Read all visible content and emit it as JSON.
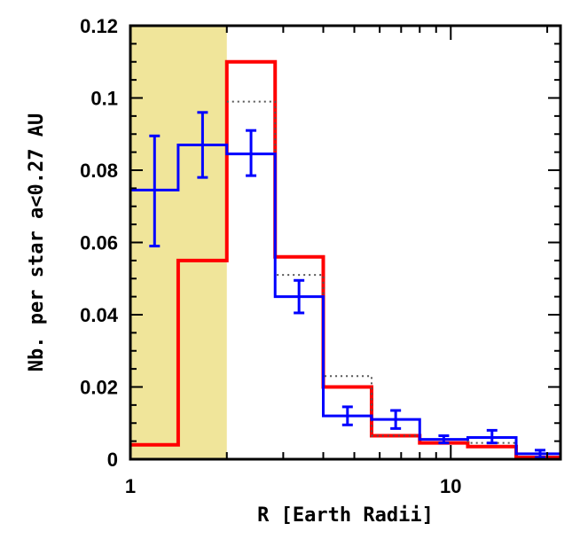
{
  "chart_data": {
    "type": "histogram",
    "xlabel": "R [Earth Radii]",
    "ylabel": "Nb. per star a<0.27 AU",
    "x_scale": "log",
    "xlim": [
      1,
      22
    ],
    "ylim": [
      0,
      0.12
    ],
    "x_ticks": [
      {
        "value": 1,
        "label": "1"
      },
      {
        "value": 10,
        "label": "10"
      }
    ],
    "y_ticks": [
      {
        "value": 0,
        "label": "0"
      },
      {
        "value": 0.02,
        "label": "0.02"
      },
      {
        "value": 0.04,
        "label": "0.04"
      },
      {
        "value": 0.06,
        "label": "0.06"
      },
      {
        "value": 0.08,
        "label": "0.08"
      },
      {
        "value": 0.1,
        "label": "0.1"
      },
      {
        "value": 0.12,
        "label": "0.12"
      }
    ],
    "shaded_region": {
      "x": [
        1,
        2.0
      ],
      "color": "#f0e59a"
    },
    "series": [
      {
        "style": "solid",
        "color": "#ff0000",
        "bin_edges": [
          1,
          1.41,
          2.0,
          2.83,
          4.0,
          5.66,
          8.0,
          11.3,
          16.0,
          22.0
        ],
        "values": [
          0.004,
          0.055,
          0.11,
          0.056,
          0.02,
          0.0065,
          0.0045,
          0.0035,
          0.0005
        ]
      },
      {
        "style": "dotted",
        "color": "#555555",
        "bin_edges": [
          2.0,
          2.83,
          4.0,
          5.66,
          8.0,
          11.3,
          16.0
        ],
        "values": [
          0.099,
          0.051,
          0.023,
          0.0065,
          0.0055,
          0.0045
        ]
      },
      {
        "style": "solid",
        "color": "#0000ff",
        "bin_edges": [
          1,
          1.41,
          2.0,
          2.83,
          4.0,
          5.66,
          8.0,
          11.3,
          16.0,
          22.0
        ],
        "values": [
          0.0745,
          0.087,
          0.0845,
          0.045,
          0.012,
          0.011,
          0.0055,
          0.006,
          0.0015
        ],
        "error_bars": [
          {
            "x": 1.19,
            "y": 0.0745,
            "low": 0.059,
            "high": 0.0895
          },
          {
            "x": 1.68,
            "y": 0.087,
            "low": 0.078,
            "high": 0.096
          },
          {
            "x": 2.38,
            "y": 0.0845,
            "low": 0.0785,
            "high": 0.091
          },
          {
            "x": 3.36,
            "y": 0.0445,
            "low": 0.0405,
            "high": 0.0495
          },
          {
            "x": 4.76,
            "y": 0.012,
            "low": 0.0095,
            "high": 0.0145
          },
          {
            "x": 6.73,
            "y": 0.011,
            "low": 0.0085,
            "high": 0.0135
          },
          {
            "x": 9.51,
            "y": 0.0055,
            "low": 0.0045,
            "high": 0.0065
          },
          {
            "x": 13.45,
            "y": 0.006,
            "low": 0.0045,
            "high": 0.008
          },
          {
            "x": 19.0,
            "y": 0.0015,
            "low": 0.0005,
            "high": 0.0025
          }
        ]
      }
    ]
  }
}
